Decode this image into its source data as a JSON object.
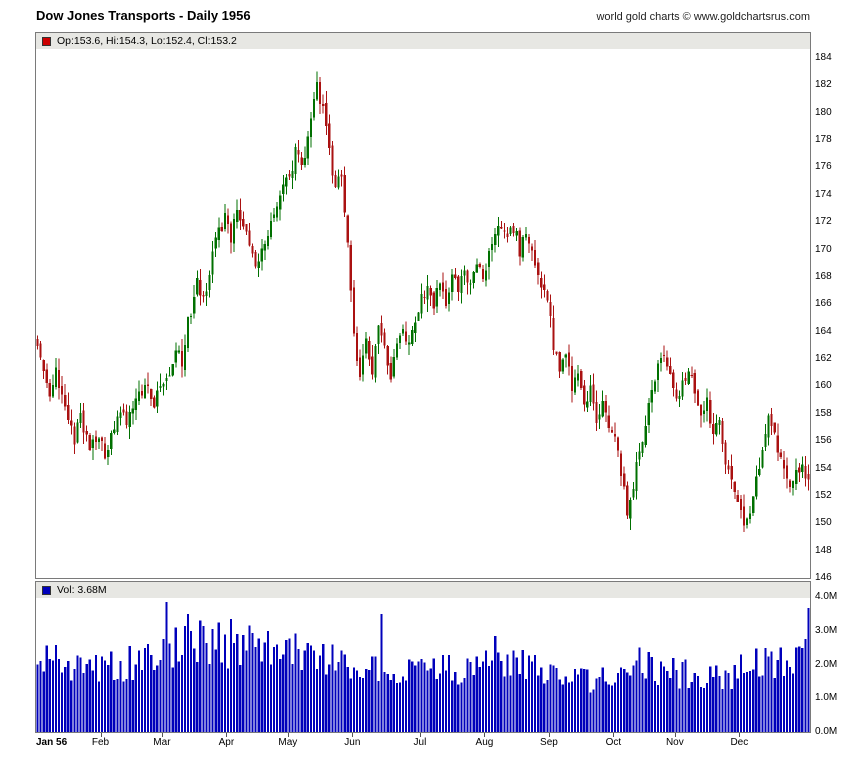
{
  "header": {
    "title": "Dow Jones Transports - Daily 1956",
    "copyright": "world gold charts © www.goldchartsrus.com"
  },
  "price_pane": {
    "legend": "Op:153.6, Hi:154.3, Lo:152.4, Cl:153.2",
    "legend_marker_color": "#cc0000",
    "y_ticks": [
      184,
      182,
      180,
      178,
      176,
      174,
      172,
      170,
      168,
      166,
      164,
      162,
      160,
      158,
      156,
      154,
      152,
      150,
      148,
      146
    ]
  },
  "volume_pane": {
    "legend": "Vol: 3.68M",
    "legend_marker_color": "#0000bb",
    "y_ticks": [
      {
        "label": "4.0M",
        "value": 4
      },
      {
        "label": "3.0M",
        "value": 3
      },
      {
        "label": "2.0M",
        "value": 2
      },
      {
        "label": "1.0M",
        "value": 1
      },
      {
        "label": "0.0M",
        "value": 0
      }
    ]
  },
  "x_axis": {
    "labels": [
      {
        "label": "Jan 56",
        "day": 0
      },
      {
        "label": "Feb",
        "day": 21
      },
      {
        "label": "Mar",
        "day": 41
      },
      {
        "label": "Apr",
        "day": 62
      },
      {
        "label": "May",
        "day": 82
      },
      {
        "label": "Jun",
        "day": 103
      },
      {
        "label": "Jul",
        "day": 125
      },
      {
        "label": "Aug",
        "day": 146
      },
      {
        "label": "Sep",
        "day": 167
      },
      {
        "label": "Oct",
        "day": 188
      },
      {
        "label": "Nov",
        "day": 208
      },
      {
        "label": "Dec",
        "day": 229
      }
    ]
  },
  "chart_data": {
    "type": "candlestick+volume",
    "title": "Dow Jones Transports - Daily 1956",
    "x_unit": "trading day of 1956 (daily bars, Jan through Dec)",
    "days_total": 252,
    "price_ylim": [
      146,
      184
    ],
    "price_tick_step": 2,
    "volume_ylim_m": [
      0,
      4
    ],
    "last_bar": {
      "open": 153.6,
      "high": 154.3,
      "low": 152.4,
      "close": 153.2,
      "volume_m": 3.68
    },
    "price_anchors": [
      [
        0,
        163.2
      ],
      [
        2,
        161.6
      ],
      [
        4,
        159.6
      ],
      [
        6,
        161.0
      ],
      [
        9,
        158.2
      ],
      [
        12,
        156.2
      ],
      [
        14,
        157.6
      ],
      [
        17,
        155.4
      ],
      [
        20,
        156.2
      ],
      [
        22,
        155.0
      ],
      [
        25,
        157.0
      ],
      [
        27,
        158.2
      ],
      [
        29,
        157.0
      ],
      [
        32,
        158.8
      ],
      [
        35,
        160.0
      ],
      [
        38,
        158.8
      ],
      [
        40,
        159.6
      ],
      [
        43,
        161.0
      ],
      [
        45,
        162.8
      ],
      [
        47,
        161.8
      ],
      [
        49,
        164.6
      ],
      [
        52,
        167.6
      ],
      [
        54,
        166.4
      ],
      [
        57,
        169.6
      ],
      [
        59,
        171.2
      ],
      [
        61,
        172.4
      ],
      [
        63,
        171.0
      ],
      [
        65,
        172.6
      ],
      [
        68,
        171.0
      ],
      [
        71,
        168.6
      ],
      [
        74,
        170.2
      ],
      [
        77,
        172.6
      ],
      [
        80,
        174.6
      ],
      [
        82,
        175.6
      ],
      [
        84,
        177.0
      ],
      [
        86,
        176.0
      ],
      [
        88,
        178.4
      ],
      [
        90,
        181.0
      ],
      [
        91,
        182.2
      ],
      [
        93,
        180.0
      ],
      [
        95,
        177.4
      ],
      [
        97,
        174.4
      ],
      [
        99,
        175.6
      ],
      [
        101,
        170.6
      ],
      [
        103,
        163.8
      ],
      [
        105,
        160.9
      ],
      [
        107,
        163.0
      ],
      [
        109,
        161.4
      ],
      [
        111,
        164.0
      ],
      [
        113,
        162.8
      ],
      [
        115,
        160.6
      ],
      [
        117,
        163.4
      ],
      [
        119,
        164.4
      ],
      [
        121,
        163.0
      ],
      [
        123,
        165.0
      ],
      [
        125,
        166.4
      ],
      [
        127,
        167.6
      ],
      [
        129,
        166.2
      ],
      [
        131,
        167.8
      ],
      [
        133,
        166.4
      ],
      [
        135,
        168.0
      ],
      [
        137,
        166.8
      ],
      [
        139,
        168.4
      ],
      [
        141,
        167.4
      ],
      [
        143,
        168.8
      ],
      [
        145,
        168.2
      ],
      [
        147,
        169.4
      ],
      [
        149,
        170.8
      ],
      [
        151,
        171.8
      ],
      [
        153,
        170.6
      ],
      [
        155,
        171.6
      ],
      [
        157,
        170.0
      ],
      [
        159,
        171.0
      ],
      [
        161,
        169.4
      ],
      [
        163,
        168.0
      ],
      [
        165,
        166.6
      ],
      [
        167,
        165.0
      ],
      [
        168,
        162.8
      ],
      [
        170,
        161.4
      ],
      [
        172,
        162.4
      ],
      [
        174,
        159.8
      ],
      [
        176,
        160.8
      ],
      [
        178,
        158.6
      ],
      [
        180,
        160.0
      ],
      [
        182,
        157.6
      ],
      [
        184,
        158.6
      ],
      [
        186,
        157.0
      ],
      [
        188,
        156.4
      ],
      [
        190,
        153.6
      ],
      [
        192,
        150.9
      ],
      [
        194,
        152.8
      ],
      [
        196,
        155.2
      ],
      [
        198,
        157.4
      ],
      [
        200,
        159.6
      ],
      [
        202,
        161.8
      ],
      [
        204,
        162.6
      ],
      [
        206,
        160.8
      ],
      [
        208,
        158.6
      ],
      [
        210,
        160.2
      ],
      [
        212,
        161.4
      ],
      [
        214,
        159.4
      ],
      [
        216,
        157.6
      ],
      [
        218,
        158.8
      ],
      [
        220,
        156.4
      ],
      [
        222,
        157.4
      ],
      [
        224,
        154.8
      ],
      [
        226,
        153.0
      ],
      [
        228,
        151.6
      ],
      [
        230,
        149.4
      ],
      [
        232,
        151.0
      ],
      [
        234,
        153.2
      ],
      [
        236,
        155.8
      ],
      [
        238,
        158.0
      ],
      [
        240,
        156.2
      ],
      [
        242,
        154.8
      ],
      [
        244,
        153.2
      ],
      [
        246,
        152.6
      ],
      [
        248,
        154.2
      ],
      [
        250,
        153.6
      ],
      [
        251,
        153.2
      ]
    ],
    "volume_anchors_m": [
      [
        0,
        2.3
      ],
      [
        8,
        2.1
      ],
      [
        15,
        1.95
      ],
      [
        21,
        1.9
      ],
      [
        28,
        2.05
      ],
      [
        35,
        2.0
      ],
      [
        41,
        2.6
      ],
      [
        48,
        2.5
      ],
      [
        55,
        2.45
      ],
      [
        62,
        2.5
      ],
      [
        70,
        2.3
      ],
      [
        78,
        2.25
      ],
      [
        82,
        2.3
      ],
      [
        90,
        2.3
      ],
      [
        98,
        2.05
      ],
      [
        103,
        1.95
      ],
      [
        110,
        1.75
      ],
      [
        118,
        1.7
      ],
      [
        125,
        1.75
      ],
      [
        132,
        1.85
      ],
      [
        139,
        1.9
      ],
      [
        146,
        2.15
      ],
      [
        154,
        2.1
      ],
      [
        162,
        1.95
      ],
      [
        167,
        1.7
      ],
      [
        174,
        1.5
      ],
      [
        181,
        1.5
      ],
      [
        188,
        1.7
      ],
      [
        194,
        1.9
      ],
      [
        200,
        1.95
      ],
      [
        206,
        1.9
      ],
      [
        210,
        1.7
      ],
      [
        217,
        1.6
      ],
      [
        223,
        1.55
      ],
      [
        229,
        1.8
      ],
      [
        236,
        2.0
      ],
      [
        243,
        2.1
      ],
      [
        250,
        2.3
      ],
      [
        251,
        3.68
      ]
    ],
    "volume_spikes_m": {
      "42": 3.85,
      "45": 3.1,
      "49": 3.5,
      "53": 3.3,
      "59": 3.25,
      "63": 3.35,
      "69": 3.15,
      "75": 3.0,
      "112": 3.5,
      "149": 2.85,
      "196": 2.5,
      "251": 3.68
    },
    "colors": {
      "up": "#007000",
      "down": "#aa1111",
      "volume": "#0000bb"
    },
    "legend_position": "top-left strip inside each pane",
    "grid": "off",
    "y_axis_side": "right"
  }
}
